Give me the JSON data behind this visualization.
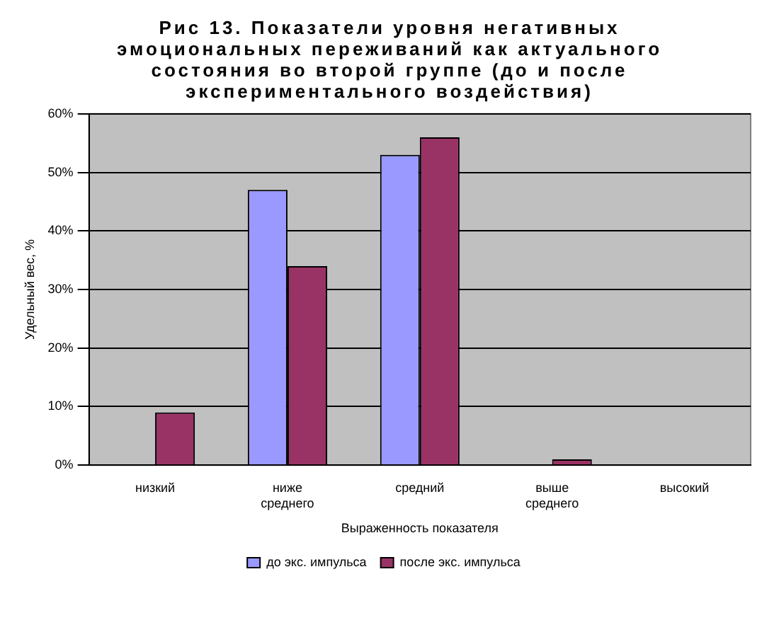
{
  "chart_data": {
    "type": "bar",
    "title": "Рис 13. Показатели уровня негативных эмоциональных переживаний как актуального состояния во второй группе (до и после экспериментального воздействия)",
    "xlabel": "Выраженность показателя",
    "ylabel": "Удельный вес, %",
    "categories": [
      "низкий",
      "ниже среднего",
      "средний",
      "выше среднего",
      "высокий"
    ],
    "series": [
      {
        "name": "до экс. импульса",
        "color": "#9999ff",
        "values": [
          0,
          47,
          53,
          0,
          0
        ]
      },
      {
        "name": "после экс. импульса",
        "color": "#993366",
        "values": [
          9,
          34,
          56,
          1,
          0
        ]
      }
    ],
    "ylim": [
      0,
      60
    ],
    "yticks": [
      {
        "value": 0,
        "label": "0%"
      },
      {
        "value": 10,
        "label": "10%"
      },
      {
        "value": 20,
        "label": "20%"
      },
      {
        "value": 30,
        "label": "30%"
      },
      {
        "value": 40,
        "label": "40%"
      },
      {
        "value": 50,
        "label": "50%"
      },
      {
        "value": 60,
        "label": "60%"
      }
    ],
    "grid": "y",
    "legend": "bottom"
  }
}
